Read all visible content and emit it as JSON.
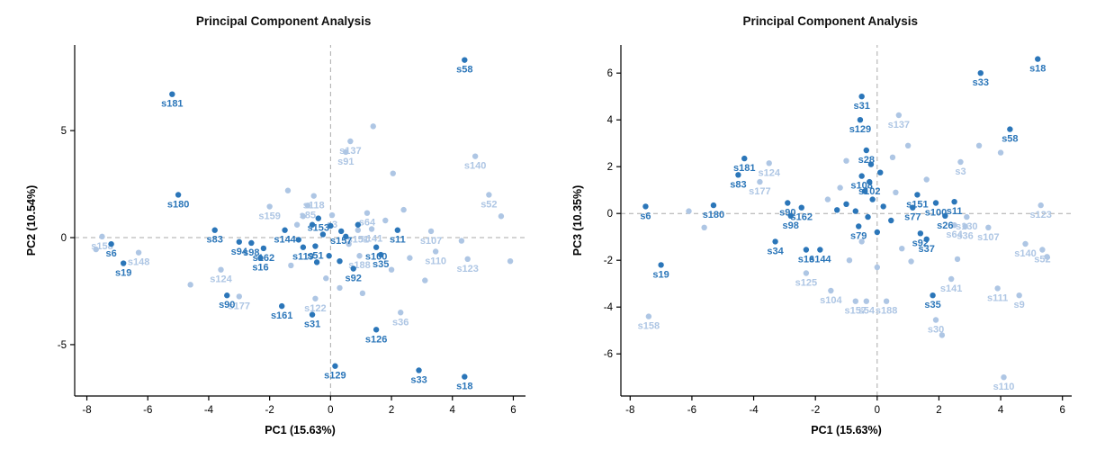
{
  "page": {
    "background": "#ffffff"
  },
  "colors": {
    "dark": "#2b76b9",
    "light": "#aec6e4",
    "axis": "#000000",
    "refline": "#aaaaaa"
  },
  "chart_data": [
    {
      "type": "scatter",
      "title": "Principal Component Analysis",
      "xlabel": "PC1 (15.63%)",
      "ylabel": "PC2 (10.54%)",
      "xlim": [
        -8.4,
        6.4
      ],
      "ylim": [
        -7.4,
        9.0
      ],
      "xticks": [
        -8,
        -6,
        -4,
        -2,
        0,
        2,
        4,
        6
      ],
      "yticks": [
        -5,
        0,
        5
      ],
      "grid": "dashed gray reference lines at x=0 and y=0",
      "legend": "none",
      "series": [
        {
          "name": "group-light",
          "color_key": "light",
          "points": [
            {
              "label": "s137",
              "x": 0.65,
              "y": 4.5
            },
            {
              "label": "s91",
              "x": 0.5,
              "y": 4.0
            },
            {
              "label": "s140",
              "x": 4.75,
              "y": 3.8
            },
            {
              "label": "s52",
              "x": 5.2,
              "y": 2.0
            },
            {
              "label": "s158",
              "x": -7.5,
              "y": 0.05
            },
            {
              "label": "s148",
              "x": -6.3,
              "y": -0.7
            },
            {
              "label": "s124",
              "x": -3.6,
              "y": -1.5
            },
            {
              "label": "s177",
              "x": -3.0,
              "y": -2.75
            },
            {
              "label": "s159",
              "x": -2.0,
              "y": 1.45
            },
            {
              "label": "s118",
              "x": -0.55,
              "y": 1.95
            },
            {
              "label": "s85",
              "x": -0.75,
              "y": 1.5
            },
            {
              "label": "s64",
              "x": 1.2,
              "y": 1.15
            },
            {
              "label": "s107",
              "x": 3.3,
              "y": 0.3
            },
            {
              "label": "s110",
              "x": 3.45,
              "y": -0.65
            },
            {
              "label": "s123",
              "x": 4.5,
              "y": -1.0
            },
            {
              "label": "s122",
              "x": -0.5,
              "y": -2.85
            },
            {
              "label": "s36",
              "x": 2.3,
              "y": -3.5
            },
            {
              "label": "s188",
              "x": 0.95,
              "y": -0.85
            },
            {
              "label": "s141",
              "x": 1.35,
              "y": 0.4
            },
            {
              "label": "s151",
              "x": 0.9,
              "y": 0.35
            },
            {
              "label": "s3",
              "x": 0.05,
              "y": 1.05
            },
            {
              "label": "",
              "x": 1.4,
              "y": 5.2
            },
            {
              "label": "",
              "x": 2.05,
              "y": 3.0
            },
            {
              "label": "",
              "x": 5.6,
              "y": 1.0
            },
            {
              "label": "",
              "x": -1.4,
              "y": 2.2
            },
            {
              "label": "",
              "x": 4.3,
              "y": -0.15
            },
            {
              "label": "",
              "x": -4.6,
              "y": -2.2
            },
            {
              "label": "",
              "x": 0.3,
              "y": -2.35
            },
            {
              "label": "",
              "x": 1.05,
              "y": -2.6
            },
            {
              "label": "",
              "x": 2.0,
              "y": -1.5
            },
            {
              "label": "",
              "x": 2.6,
              "y": -0.95
            },
            {
              "label": "",
              "x": -7.7,
              "y": -0.55
            },
            {
              "label": "",
              "x": 5.9,
              "y": -1.1
            },
            {
              "label": "",
              "x": 3.1,
              "y": -2.0
            },
            {
              "label": "",
              "x": -0.15,
              "y": -1.9
            },
            {
              "label": "",
              "x": 0.6,
              "y": -0.3
            },
            {
              "label": "",
              "x": 1.8,
              "y": 0.8
            },
            {
              "label": "",
              "x": -1.1,
              "y": 0.6
            },
            {
              "label": "",
              "x": -1.3,
              "y": -1.3
            },
            {
              "label": "",
              "x": 2.4,
              "y": 1.3
            },
            {
              "label": "",
              "x": -0.9,
              "y": 1.0
            }
          ]
        },
        {
          "name": "group-dark",
          "color_key": "dark",
          "points": [
            {
              "label": "s58",
              "x": 4.4,
              "y": 8.3
            },
            {
              "label": "s181",
              "x": -5.2,
              "y": 6.7
            },
            {
              "label": "s180",
              "x": -5.0,
              "y": 2.0
            },
            {
              "label": "s6",
              "x": -7.2,
              "y": -0.3
            },
            {
              "label": "s19",
              "x": -6.8,
              "y": -1.2
            },
            {
              "label": "s83",
              "x": -3.8,
              "y": 0.35
            },
            {
              "label": "s94",
              "x": -3.0,
              "y": -0.2
            },
            {
              "label": "s98",
              "x": -2.6,
              "y": -0.25
            },
            {
              "label": "s90",
              "x": -3.4,
              "y": -2.7
            },
            {
              "label": "s162",
              "x": -2.2,
              "y": -0.5
            },
            {
              "label": "s16",
              "x": -2.3,
              "y": -0.95
            },
            {
              "label": "s144",
              "x": -1.5,
              "y": 0.35
            },
            {
              "label": "s161",
              "x": -1.6,
              "y": -3.2
            },
            {
              "label": "s31",
              "x": -0.6,
              "y": -3.6
            },
            {
              "label": "s129",
              "x": 0.15,
              "y": -6.0
            },
            {
              "label": "s126",
              "x": 1.5,
              "y": -4.3
            },
            {
              "label": "s33",
              "x": 2.9,
              "y": -6.2
            },
            {
              "label": "s18",
              "x": 4.4,
              "y": -6.5
            },
            {
              "label": "s35",
              "x": 1.65,
              "y": -0.8
            },
            {
              "label": "s100",
              "x": 1.5,
              "y": -0.45
            },
            {
              "label": "s11",
              "x": 2.2,
              "y": 0.35
            },
            {
              "label": "s92",
              "x": 0.75,
              "y": -1.45
            },
            {
              "label": "s153",
              "x": -0.4,
              "y": 0.9
            },
            {
              "label": "s119",
              "x": -0.9,
              "y": -0.45
            },
            {
              "label": "s51",
              "x": -0.5,
              "y": -0.4
            },
            {
              "label": "s157",
              "x": 0.35,
              "y": 0.3
            },
            {
              "label": "",
              "x": 0.0,
              "y": 0.55
            },
            {
              "label": "",
              "x": -0.25,
              "y": 0.15
            },
            {
              "label": "",
              "x": 0.5,
              "y": 0.05
            },
            {
              "label": "",
              "x": -0.6,
              "y": 0.6
            },
            {
              "label": "",
              "x": 0.9,
              "y": 0.6
            },
            {
              "label": "",
              "x": -1.05,
              "y": -0.1
            },
            {
              "label": "",
              "x": 0.3,
              "y": -1.1
            },
            {
              "label": "",
              "x": -0.05,
              "y": -0.85
            },
            {
              "label": "",
              "x": -0.45,
              "y": -1.15
            }
          ]
        }
      ]
    },
    {
      "type": "scatter",
      "title": "Principal Component Analysis",
      "xlabel": "PC1 (15.63%)",
      "ylabel": "PC3 (10.35%)",
      "xlim": [
        -8.3,
        6.3
      ],
      "ylim": [
        -7.8,
        7.2
      ],
      "xticks": [
        -8,
        -6,
        -4,
        -2,
        0,
        2,
        4,
        6
      ],
      "yticks": [
        -6,
        -4,
        -2,
        0,
        2,
        4,
        6
      ],
      "grid": "dashed gray reference lines at x=0 and y=0",
      "legend": "none",
      "series": [
        {
          "name": "group-light",
          "color_key": "light",
          "points": [
            {
              "label": "s137",
              "x": 0.7,
              "y": 4.2
            },
            {
              "label": "s124",
              "x": -3.5,
              "y": 2.15
            },
            {
              "label": "s177",
              "x": -3.8,
              "y": 1.35
            },
            {
              "label": "s3",
              "x": 2.7,
              "y": 2.2
            },
            {
              "label": "s123",
              "x": 5.3,
              "y": 0.35
            },
            {
              "label": "s107",
              "x": 3.6,
              "y": -0.6
            },
            {
              "label": "s130",
              "x": 2.9,
              "y": -0.15
            },
            {
              "label": "s64",
              "x": 2.5,
              "y": -0.5
            },
            {
              "label": "s36",
              "x": 2.85,
              "y": -0.55
            },
            {
              "label": "s140",
              "x": 4.8,
              "y": -1.3
            },
            {
              "label": "s52",
              "x": 5.35,
              "y": -1.55
            },
            {
              "label": "s141",
              "x": 2.4,
              "y": -2.8
            },
            {
              "label": "s111",
              "x": 3.9,
              "y": -3.2
            },
            {
              "label": "s9",
              "x": 4.6,
              "y": -3.5
            },
            {
              "label": "s30",
              "x": 1.9,
              "y": -4.55
            },
            {
              "label": "s158",
              "x": -7.4,
              "y": -4.4
            },
            {
              "label": "s104",
              "x": -1.5,
              "y": -3.3
            },
            {
              "label": "s125",
              "x": -2.3,
              "y": -2.55
            },
            {
              "label": "s157",
              "x": -0.7,
              "y": -3.75
            },
            {
              "label": "s54",
              "x": -0.35,
              "y": -3.75
            },
            {
              "label": "s188",
              "x": 0.3,
              "y": -3.75
            },
            {
              "label": "s110",
              "x": 4.1,
              "y": -7.0
            },
            {
              "label": "",
              "x": -6.1,
              "y": 0.1
            },
            {
              "label": "",
              "x": -5.6,
              "y": -0.6
            },
            {
              "label": "",
              "x": 1.0,
              "y": 2.9
            },
            {
              "label": "",
              "x": 0.5,
              "y": 2.4
            },
            {
              "label": "",
              "x": -1.2,
              "y": 1.1
            },
            {
              "label": "",
              "x": -1.6,
              "y": 0.6
            },
            {
              "label": "",
              "x": 0.8,
              "y": -1.5
            },
            {
              "label": "",
              "x": 1.1,
              "y": -2.05
            },
            {
              "label": "",
              "x": 2.6,
              "y": -1.95
            },
            {
              "label": "",
              "x": -0.9,
              "y": -2.0
            },
            {
              "label": "",
              "x": 0.0,
              "y": -2.3
            },
            {
              "label": "",
              "x": 5.5,
              "y": -1.85
            },
            {
              "label": "",
              "x": -0.5,
              "y": -1.2
            },
            {
              "label": "",
              "x": 0.6,
              "y": 0.9
            },
            {
              "label": "",
              "x": 1.6,
              "y": 1.45
            },
            {
              "label": "",
              "x": -1.0,
              "y": 2.25
            },
            {
              "label": "",
              "x": 3.3,
              "y": 2.9
            },
            {
              "label": "",
              "x": 4.0,
              "y": 2.6
            },
            {
              "label": "",
              "x": 2.1,
              "y": -5.2
            }
          ]
        },
        {
          "name": "group-dark",
          "color_key": "dark",
          "points": [
            {
              "label": "s18",
              "x": 5.2,
              "y": 6.6
            },
            {
              "label": "s33",
              "x": 3.35,
              "y": 6.0
            },
            {
              "label": "s58",
              "x": 4.3,
              "y": 3.6
            },
            {
              "label": "s31",
              "x": -0.5,
              "y": 5.0
            },
            {
              "label": "s129",
              "x": -0.55,
              "y": 4.0
            },
            {
              "label": "s181",
              "x": -4.3,
              "y": 2.35
            },
            {
              "label": "s83",
              "x": -4.5,
              "y": 1.65
            },
            {
              "label": "s180",
              "x": -5.3,
              "y": 0.35
            },
            {
              "label": "s6",
              "x": -7.5,
              "y": 0.3
            },
            {
              "label": "s19",
              "x": -7.0,
              "y": -2.2
            },
            {
              "label": "s90",
              "x": -2.9,
              "y": 0.45
            },
            {
              "label": "s98",
              "x": -2.8,
              "y": -0.1
            },
            {
              "label": "s34",
              "x": -3.3,
              "y": -1.2
            },
            {
              "label": "s16",
              "x": -2.3,
              "y": -1.55
            },
            {
              "label": "s144",
              "x": -1.85,
              "y": -1.55
            },
            {
              "label": "s162",
              "x": -2.45,
              "y": 0.25
            },
            {
              "label": "s28",
              "x": -0.35,
              "y": 2.7
            },
            {
              "label": "s108",
              "x": -0.5,
              "y": 1.6
            },
            {
              "label": "s102",
              "x": -0.25,
              "y": 1.35
            },
            {
              "label": "s151",
              "x": 1.3,
              "y": 0.8
            },
            {
              "label": "s77",
              "x": 1.15,
              "y": 0.25
            },
            {
              "label": "s100",
              "x": 1.9,
              "y": 0.45
            },
            {
              "label": "s11",
              "x": 2.5,
              "y": 0.5
            },
            {
              "label": "s26",
              "x": 2.2,
              "y": -0.1
            },
            {
              "label": "s92",
              "x": 1.4,
              "y": -0.85
            },
            {
              "label": "s37",
              "x": 1.6,
              "y": -1.1
            },
            {
              "label": "s35",
              "x": 1.8,
              "y": -3.5
            },
            {
              "label": "s79",
              "x": -0.6,
              "y": -0.55
            },
            {
              "label": "",
              "x": -0.2,
              "y": 2.1
            },
            {
              "label": "",
              "x": 0.1,
              "y": 1.75
            },
            {
              "label": "",
              "x": -0.4,
              "y": 0.95
            },
            {
              "label": "",
              "x": -0.15,
              "y": 0.6
            },
            {
              "label": "",
              "x": 0.2,
              "y": 0.3
            },
            {
              "label": "",
              "x": -0.7,
              "y": 0.1
            },
            {
              "label": "",
              "x": -0.3,
              "y": -0.15
            },
            {
              "label": "",
              "x": 0.45,
              "y": -0.3
            },
            {
              "label": "",
              "x": -1.0,
              "y": 0.4
            },
            {
              "label": "",
              "x": -1.3,
              "y": 0.15
            },
            {
              "label": "",
              "x": 0.0,
              "y": -0.8
            }
          ]
        }
      ]
    }
  ]
}
